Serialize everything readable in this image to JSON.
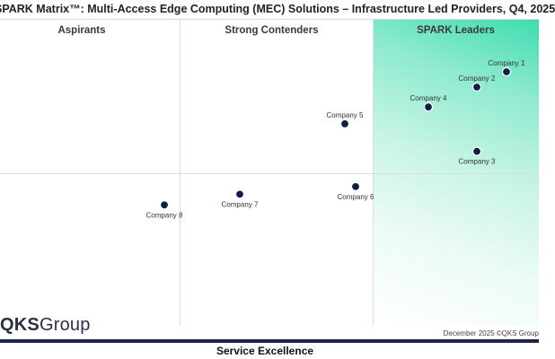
{
  "chart_data": {
    "type": "scatter",
    "title": "SPARK Matrix™: Multi-Access Edge Computing (MEC) Solutions – Infrastructure Led Providers, Q4, 2025",
    "xlabel": "",
    "ylabel": "",
    "bottom_label": "Service Excellence",
    "quadrants": [
      "Aspirants",
      "Strong Contenders",
      "SPARK Leaders"
    ],
    "grid": true,
    "xlim": [
      0,
      100
    ],
    "ylim": [
      0,
      100
    ],
    "points": [
      {
        "label": "Company 1",
        "x": 94,
        "y": 83
      },
      {
        "label": "Company 2",
        "x": 88.5,
        "y": 78
      },
      {
        "label": "Company 3",
        "x": 88.5,
        "y": 57
      },
      {
        "label": "Company 4",
        "x": 79.5,
        "y": 71.5
      },
      {
        "label": "Company 5",
        "x": 64,
        "y": 66
      },
      {
        "label": "Company 6",
        "x": 66,
        "y": 45.5
      },
      {
        "label": "Company 7",
        "x": 44.5,
        "y": 43
      },
      {
        "label": "Company 8",
        "x": 30.5,
        "y": 39.5
      }
    ]
  },
  "logo": {
    "text_bold": "QKS",
    "text_regular": "Group"
  },
  "footer": {
    "date": "December 2025 ©QKS Group"
  },
  "colors": {
    "point": "#0f1f45",
    "leaders_accent": "#3fdcb0",
    "footer_bar": "#1c2743"
  }
}
